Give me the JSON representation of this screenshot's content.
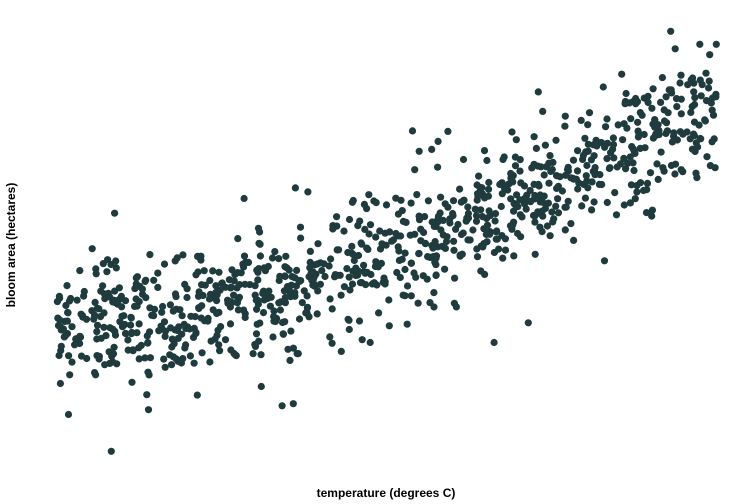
{
  "chart_data": {
    "type": "scatter",
    "title": "",
    "xlabel": "temperature (degrees C)",
    "ylabel": "bloom area (hectares)",
    "xlim": [
      0,
      100
    ],
    "ylim": [
      0,
      100
    ],
    "axis_ticks_visible": false,
    "grid": false,
    "legend": "none",
    "point_color": "#1f3b3d",
    "point_count": 1000,
    "trend": "increasing, convex (curving upward at higher temperature)",
    "x_range_of_points": [
      0,
      100
    ],
    "y_range_of_points": [
      0,
      100
    ],
    "series": [
      {
        "values_sample": [
          {
            "x": 1.5,
            "y": 32
          },
          {
            "x": 4.0,
            "y": 24
          },
          {
            "x": 7.5,
            "y": 22
          },
          {
            "x": 8.5,
            "y": 2
          },
          {
            "x": 9.0,
            "y": 57
          },
          {
            "x": 14.0,
            "y": 27
          },
          {
            "x": 21.5,
            "y": 15
          },
          {
            "x": 35.5,
            "y": 23
          },
          {
            "x": 36.0,
            "y": 13
          },
          {
            "x": 50.5,
            "y": 31
          },
          {
            "x": 54.0,
            "y": 76
          },
          {
            "x": 73.0,
            "y": 85
          },
          {
            "x": 83.0,
            "y": 46
          },
          {
            "x": 88.0,
            "y": 78
          },
          {
            "x": 93.0,
            "y": 99
          },
          {
            "x": 99.0,
            "y": 68
          }
        ]
      }
    ]
  }
}
